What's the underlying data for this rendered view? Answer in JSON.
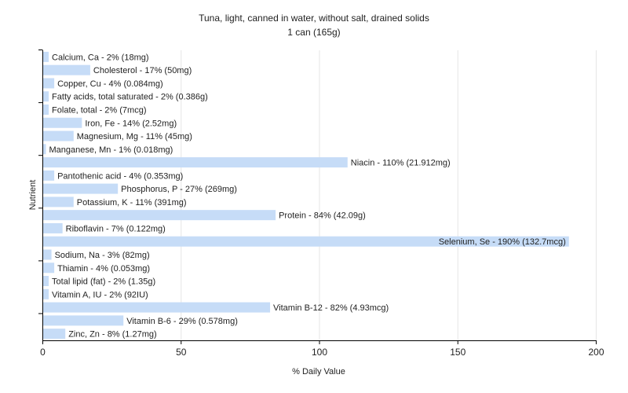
{
  "chart_data": {
    "type": "bar",
    "orientation": "horizontal",
    "title": "Tuna, light, canned in water, without salt, drained solids",
    "subtitle": "1 can (165g)",
    "xlabel": "% Daily Value",
    "ylabel": "Nutrient",
    "xlim": [
      0,
      200
    ],
    "xticks": [
      0,
      50,
      100,
      150,
      200
    ],
    "grid": true,
    "legend": "none",
    "bar_color": "#c6dcf7",
    "categories": [
      "Calcium, Ca",
      "Cholesterol",
      "Copper, Cu",
      "Fatty acids, total saturated",
      "Folate, total",
      "Iron, Fe",
      "Magnesium, Mg",
      "Manganese, Mn",
      "Niacin",
      "Pantothenic acid",
      "Phosphorus, P",
      "Potassium, K",
      "Protein",
      "Riboflavin",
      "Selenium, Se",
      "Sodium, Na",
      "Thiamin",
      "Total lipid (fat)",
      "Vitamin A, IU",
      "Vitamin B-12",
      "Vitamin B-6",
      "Zinc, Zn"
    ],
    "values": [
      2,
      17,
      4,
      2,
      2,
      14,
      11,
      1,
      110,
      4,
      27,
      11,
      84,
      7,
      190,
      3,
      4,
      2,
      2,
      82,
      29,
      8
    ],
    "labels": [
      "Calcium, Ca - 2% (18mg)",
      "Cholesterol - 17% (50mg)",
      "Copper, Cu - 4% (0.084mg)",
      "Fatty acids, total saturated - 2% (0.386g)",
      "Folate, total - 2% (7mcg)",
      "Iron, Fe - 14% (2.52mg)",
      "Magnesium, Mg - 11% (45mg)",
      "Manganese, Mn - 1% (0.018mg)",
      "Niacin - 110% (21.912mg)",
      "Pantothenic acid - 4% (0.353mg)",
      "Phosphorus, P - 27% (269mg)",
      "Potassium, K - 11% (391mg)",
      "Protein - 84% (42.09g)",
      "Riboflavin - 7% (0.122mg)",
      "Selenium, Se - 190% (132.7mcg)",
      "Sodium, Na - 3% (82mg)",
      "Thiamin - 4% (0.053mg)",
      "Total lipid (fat) - 2% (1.35g)",
      "Vitamin A, IU - 2% (92IU)",
      "Vitamin B-12 - 82% (4.93mcg)",
      "Vitamin B-6 - 29% (0.578mg)",
      "Zinc, Zn - 8% (1.27mg)"
    ]
  }
}
